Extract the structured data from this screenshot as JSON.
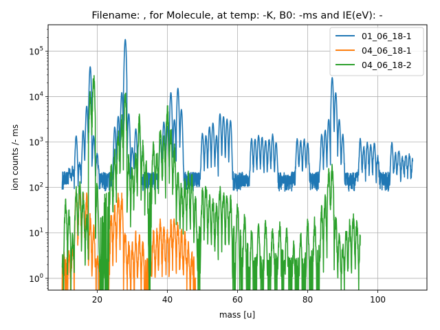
{
  "chart_data": {
    "type": "line",
    "title": "Filename: , for Molecule, at temp: -K, B0: -ms and IE(eV): -",
    "xlabel": "mass [u]",
    "ylabel": "ion counts /- ms",
    "xlim": [
      6,
      114
    ],
    "ylim": [
      0.55,
      380000
    ],
    "yscale": "log",
    "grid": true,
    "legend_position": "top-right",
    "x_ticks": [
      20,
      40,
      60,
      80,
      100
    ],
    "x_tick_labels": [
      "20",
      "40",
      "60",
      "80",
      "100"
    ],
    "y_ticks": [
      1,
      10,
      100,
      1000,
      10000,
      100000
    ],
    "y_tick_labels": [
      "10⁰",
      "10¹",
      "10²",
      "10³",
      "10⁴",
      "10⁵"
    ],
    "y_tick_label_parts": [
      {
        "base": "10",
        "exp": "0"
      },
      {
        "base": "10",
        "exp": "1"
      },
      {
        "base": "10",
        "exp": "2"
      },
      {
        "base": "10",
        "exp": "3"
      },
      {
        "base": "10",
        "exp": "4"
      },
      {
        "base": "10",
        "exp": "5"
      }
    ],
    "series": [
      {
        "name": "01_06_18-1",
        "color": "#1f77b4",
        "x_range": [
          10,
          110
        ],
        "baseline": 150,
        "peaks": [
          [
            10.0,
            6
          ],
          [
            11.0,
            20
          ],
          [
            12.0,
            60
          ],
          [
            13.0,
            90
          ],
          [
            14.0,
            1200
          ],
          [
            15.0,
            200
          ],
          [
            16.0,
            1600
          ],
          [
            17.0,
            6000
          ],
          [
            18.0,
            45000
          ],
          [
            19.0,
            1200
          ],
          [
            20.0,
            400
          ],
          [
            25.0,
            2000
          ],
          [
            26.0,
            3500
          ],
          [
            27.0,
            12000
          ],
          [
            28.0,
            180000
          ],
          [
            29.0,
            4000
          ],
          [
            30.0,
            600
          ],
          [
            31.0,
            1800
          ],
          [
            32.0,
            2000
          ],
          [
            38.0,
            1000
          ],
          [
            39.0,
            2600
          ],
          [
            40.0,
            2000
          ],
          [
            41.0,
            12000
          ],
          [
            42.0,
            3000
          ],
          [
            43.0,
            15000
          ],
          [
            44.0,
            5000
          ],
          [
            50.0,
            1400
          ],
          [
            51.0,
            1200
          ],
          [
            52.0,
            2000
          ],
          [
            53.0,
            2500
          ],
          [
            54.0,
            1200
          ],
          [
            55.0,
            4000
          ],
          [
            56.0,
            3500
          ],
          [
            57.0,
            3000
          ],
          [
            58.0,
            2800
          ],
          [
            64.0,
            1000
          ],
          [
            65.0,
            1000
          ],
          [
            66.0,
            1200
          ],
          [
            67.0,
            1100
          ],
          [
            68.0,
            900
          ],
          [
            69.0,
            1000
          ],
          [
            70.0,
            1300
          ],
          [
            71.0,
            800
          ],
          [
            77.0,
            1000
          ],
          [
            78.0,
            900
          ],
          [
            79.0,
            1000
          ],
          [
            80.0,
            800
          ],
          [
            84.0,
            1300
          ],
          [
            85.0,
            1700
          ],
          [
            86.0,
            3000
          ],
          [
            87.0,
            26000
          ],
          [
            88.0,
            12000
          ],
          [
            89.0,
            3000
          ],
          [
            90.0,
            1300
          ],
          [
            95.0,
            1000
          ],
          [
            96.0,
            600
          ],
          [
            97.0,
            800
          ],
          [
            98.0,
            700
          ],
          [
            99.0,
            800
          ],
          [
            100.0,
            300
          ],
          [
            104.0,
            800
          ],
          [
            105.0,
            400
          ],
          [
            106.0,
            500
          ],
          [
            107.0,
            300
          ],
          [
            108.0,
            400
          ],
          [
            109.0,
            350
          ],
          [
            110.0,
            300
          ]
        ]
      },
      {
        "name": "04_06_18-1",
        "color": "#ff7f0e",
        "x_range": [
          10,
          48
        ],
        "baseline": 0.55,
        "peaks": [
          [
            10.5,
            3
          ],
          [
            12.0,
            3
          ],
          [
            13.0,
            6
          ],
          [
            14.0,
            70
          ],
          [
            15.0,
            80
          ],
          [
            16.0,
            60
          ],
          [
            17.0,
            55
          ],
          [
            18.0,
            20
          ],
          [
            19.0,
            12
          ],
          [
            20.0,
            3
          ],
          [
            22.0,
            2
          ],
          [
            24.0,
            20
          ],
          [
            25.0,
            30
          ],
          [
            26.0,
            60
          ],
          [
            27.0,
            55
          ],
          [
            28.0,
            10
          ],
          [
            29.0,
            5
          ],
          [
            30.0,
            5
          ],
          [
            31.0,
            8
          ],
          [
            32.0,
            8
          ],
          [
            33.0,
            5
          ],
          [
            35.0,
            8
          ],
          [
            36.0,
            10
          ],
          [
            37.0,
            10
          ],
          [
            38.0,
            15
          ],
          [
            39.0,
            12
          ],
          [
            40.0,
            10
          ],
          [
            41.0,
            15
          ],
          [
            42.0,
            20
          ],
          [
            43.0,
            15
          ],
          [
            44.0,
            10
          ],
          [
            45.0,
            8
          ],
          [
            46.0,
            5
          ],
          [
            47.0,
            3
          ]
        ]
      },
      {
        "name": "04_06_18-2",
        "color": "#2ca02c",
        "x_range": [
          10,
          95
        ],
        "baseline": 0.55,
        "peaks": [
          [
            10.0,
            3
          ],
          [
            11.0,
            45
          ],
          [
            12.0,
            25
          ],
          [
            13.0,
            8
          ],
          [
            14.0,
            80
          ],
          [
            15.0,
            100
          ],
          [
            16.0,
            60
          ],
          [
            17.0,
            20
          ],
          [
            18.0,
            10000
          ],
          [
            19.0,
            24000
          ],
          [
            20.0,
            100
          ],
          [
            24.0,
            300
          ],
          [
            25.0,
            500
          ],
          [
            26.0,
            1500
          ],
          [
            27.0,
            3000
          ],
          [
            28.0,
            10000
          ],
          [
            29.0,
            400
          ],
          [
            30.0,
            250
          ],
          [
            31.0,
            500
          ],
          [
            32.0,
            3000
          ],
          [
            33.0,
            800
          ],
          [
            34.0,
            300
          ],
          [
            36.0,
            800
          ],
          [
            37.0,
            500
          ],
          [
            38.0,
            1800
          ],
          [
            39.0,
            1000
          ],
          [
            40.0,
            5000
          ],
          [
            41.0,
            1500
          ],
          [
            42.0,
            700
          ],
          [
            43.0,
            200
          ],
          [
            44.0,
            100
          ],
          [
            45.0,
            120
          ],
          [
            46.0,
            180
          ],
          [
            47.0,
            150
          ],
          [
            48.0,
            50
          ],
          [
            50.0,
            80
          ],
          [
            51.0,
            100
          ],
          [
            52.0,
            60
          ],
          [
            53.0,
            50
          ],
          [
            54.0,
            40
          ],
          [
            55.0,
            80
          ],
          [
            56.0,
            70
          ],
          [
            57.0,
            60
          ],
          [
            58.0,
            50
          ],
          [
            60.0,
            40
          ],
          [
            62.0,
            20
          ],
          [
            64.0,
            10
          ],
          [
            66.0,
            12
          ],
          [
            68.0,
            15
          ],
          [
            70.0,
            12
          ],
          [
            72.0,
            15
          ],
          [
            74.0,
            10
          ],
          [
            76.0,
            5
          ],
          [
            78.0,
            8
          ],
          [
            80.0,
            15
          ],
          [
            82.0,
            18
          ],
          [
            84.0,
            30
          ],
          [
            85.0,
            50
          ],
          [
            86.0,
            200
          ],
          [
            87.0,
            250
          ],
          [
            88.0,
            20
          ],
          [
            89.0,
            8
          ],
          [
            90.0,
            5
          ],
          [
            91.0,
            10
          ],
          [
            92.0,
            15
          ],
          [
            93.0,
            20
          ],
          [
            94.0,
            15
          ],
          [
            95.0,
            8
          ]
        ]
      }
    ]
  }
}
